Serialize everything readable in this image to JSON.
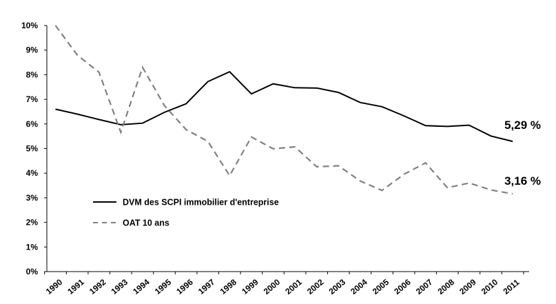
{
  "chart_data": {
    "type": "line",
    "title": "",
    "xlabel": "",
    "ylabel": "",
    "x": [
      "1990",
      "1991",
      "1992",
      "1993",
      "1994",
      "1995",
      "1996",
      "1997",
      "1998",
      "1999",
      "2000",
      "2001",
      "2002",
      "2003",
      "2004",
      "2005",
      "2006",
      "2007",
      "2008",
      "2009",
      "2010",
      "2011"
    ],
    "ylim": [
      0,
      10
    ],
    "yticks": [
      0,
      1,
      2,
      3,
      4,
      5,
      6,
      7,
      8,
      9,
      10
    ],
    "ytick_labels": [
      "0%",
      "1%",
      "2%",
      "3%",
      "4%",
      "5%",
      "6%",
      "7%",
      "8%",
      "9%",
      "10%"
    ],
    "grid": false,
    "legend_position": "left-middle",
    "series": [
      {
        "name": "DVM des SCPI immobilier d'entreprise",
        "style": "solid",
        "color": "#000000",
        "values": [
          6.6,
          6.4,
          6.18,
          5.97,
          6.03,
          6.47,
          6.82,
          7.72,
          8.12,
          7.22,
          7.63,
          7.47,
          7.46,
          7.28,
          6.87,
          6.7,
          6.33,
          5.93,
          5.9,
          5.95,
          5.51,
          5.29
        ],
        "end_label": "5,29 %"
      },
      {
        "name": "OAT 10 ans",
        "style": "dashed",
        "color": "#808080",
        "values": [
          10.0,
          8.8,
          8.1,
          5.66,
          8.3,
          6.75,
          5.77,
          5.29,
          3.9,
          5.47,
          4.99,
          5.07,
          4.26,
          4.3,
          3.68,
          3.3,
          3.95,
          4.42,
          3.41,
          3.6,
          3.32,
          3.16
        ],
        "end_label": "3,16 %"
      }
    ]
  }
}
